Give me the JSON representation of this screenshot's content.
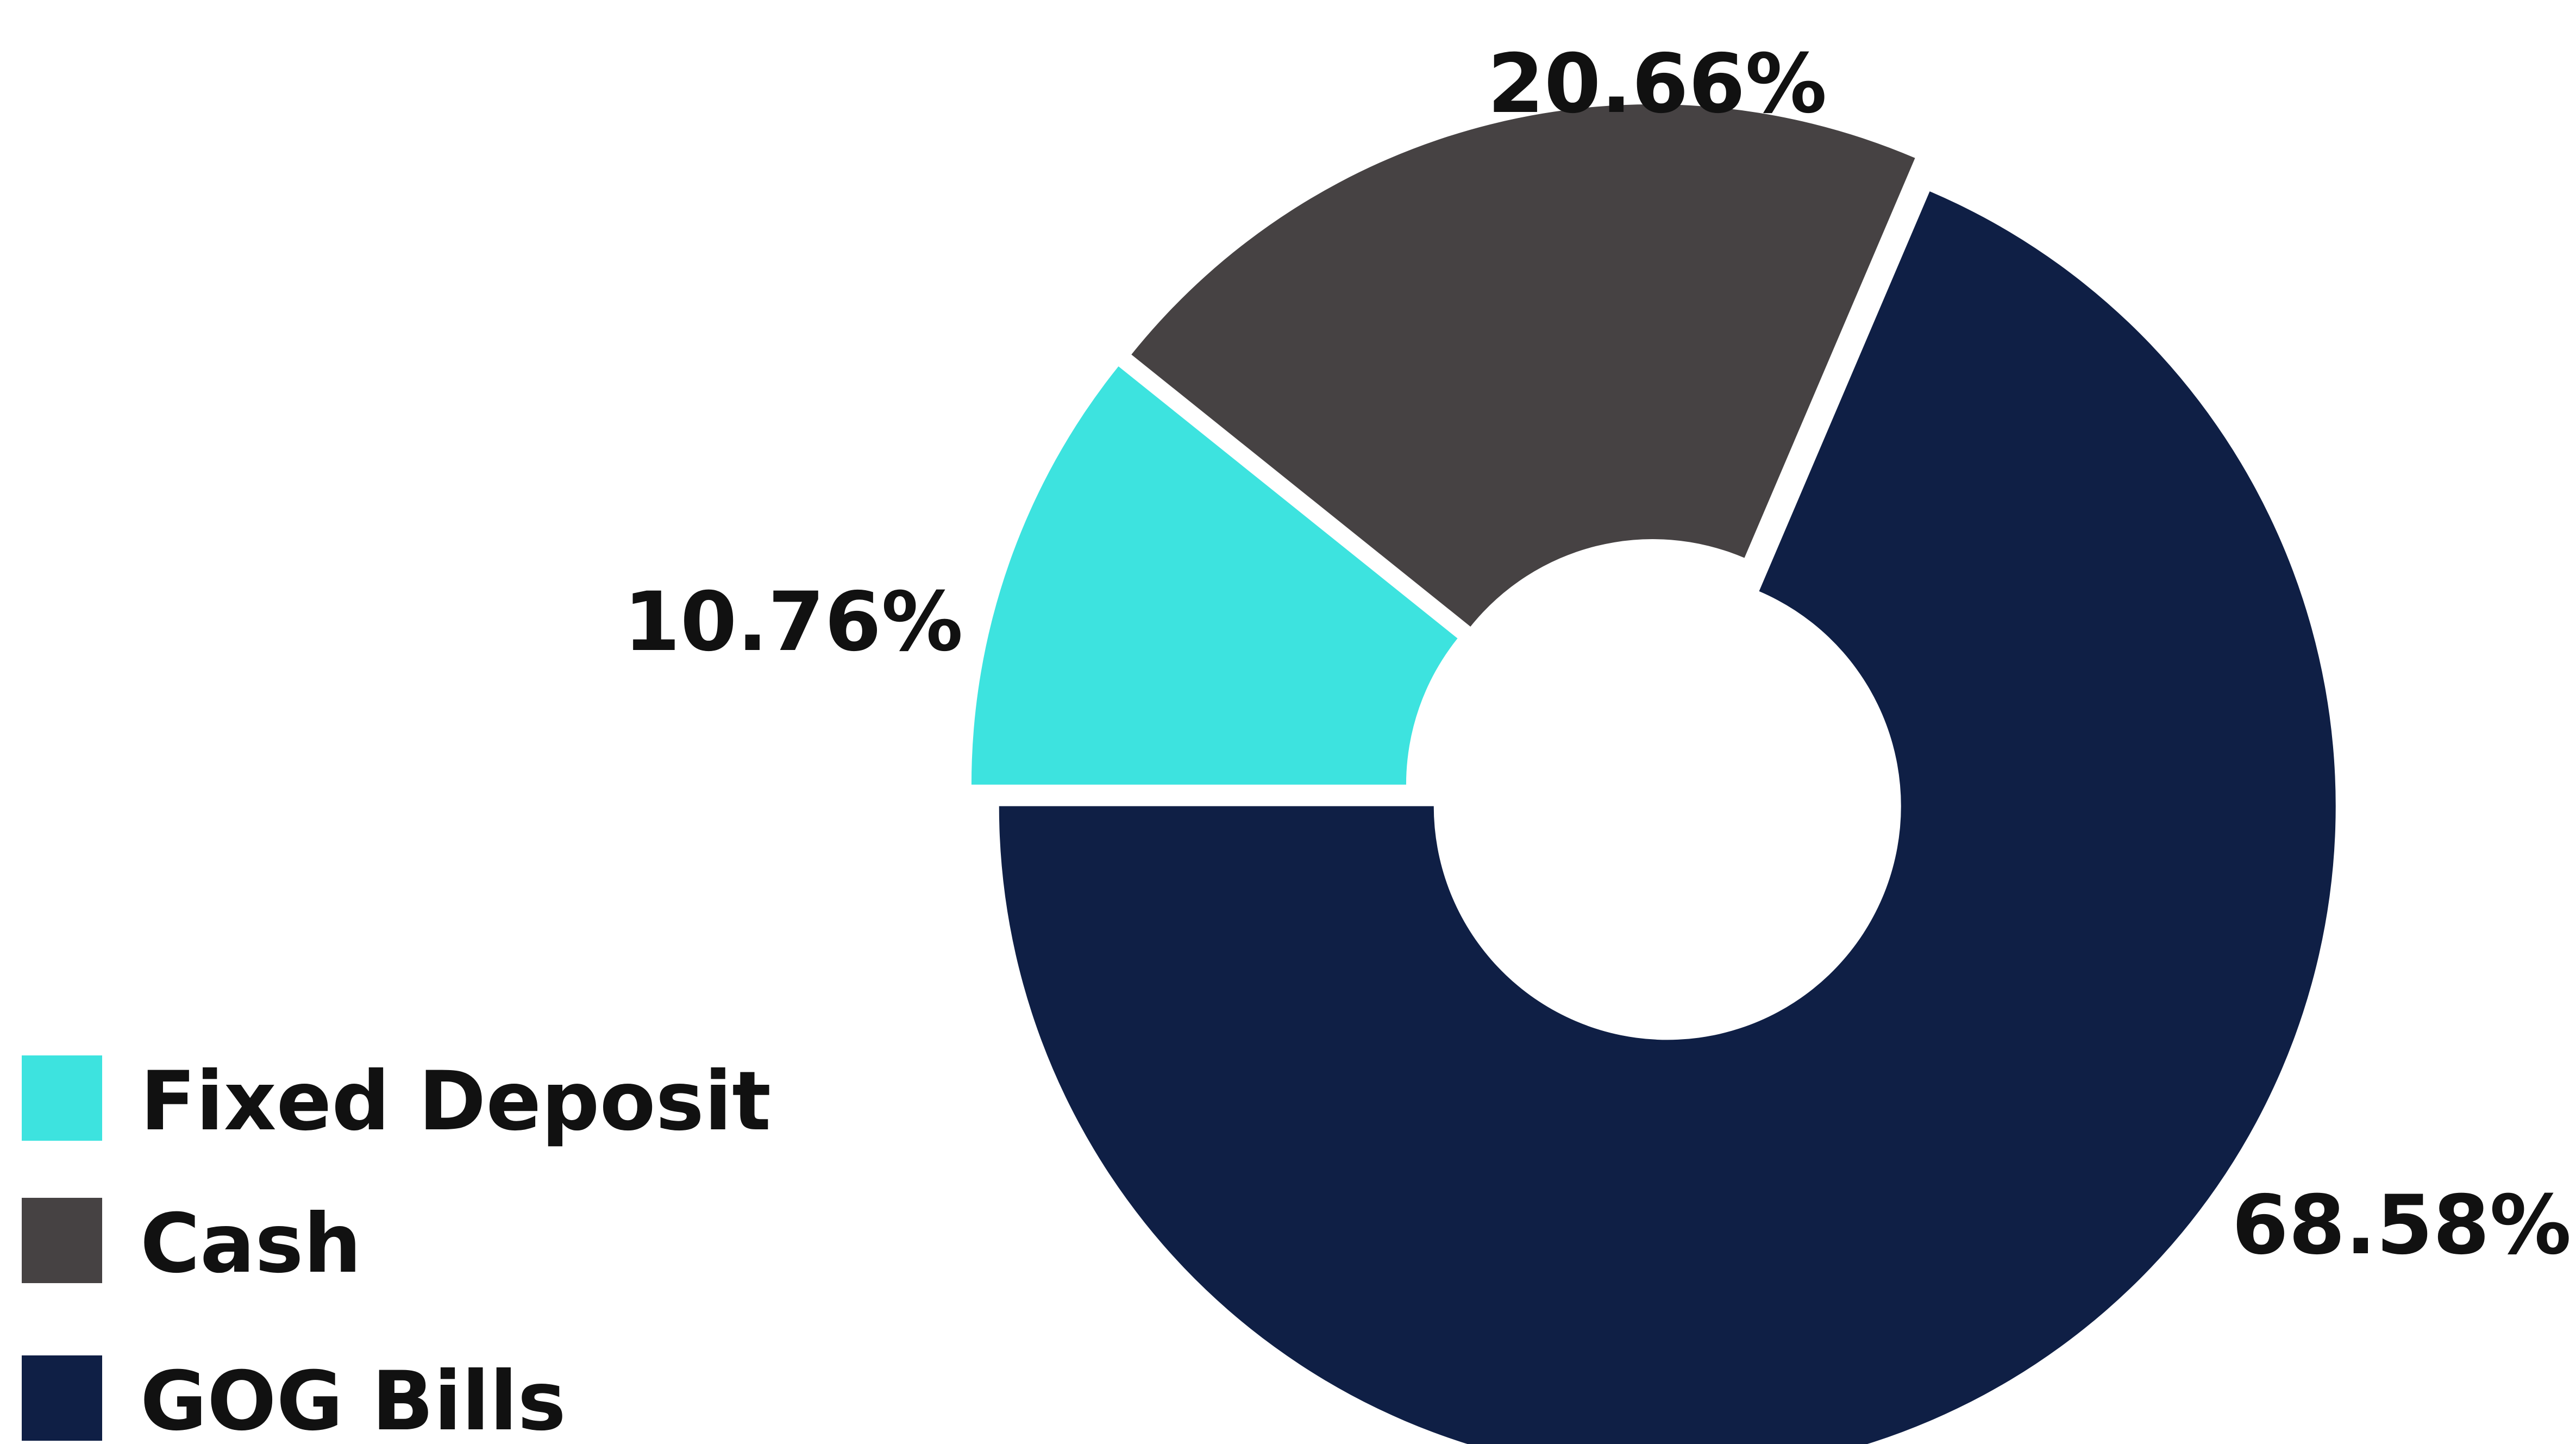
{
  "chart_data": {
    "type": "pie",
    "donut": true,
    "categories": [
      "Fixed Deposit",
      "Cash",
      "GOG Bills"
    ],
    "values": [
      10.76,
      20.66,
      68.58
    ],
    "labels": [
      "10.76%",
      "20.66%",
      "68.58%"
    ],
    "colors": [
      "#3de3df",
      "#464243",
      "#0f1f45"
    ],
    "legend": {
      "position": "bottom-left",
      "items": [
        {
          "label": "Fixed Deposit",
          "color": "#3de3df"
        },
        {
          "label": "Cash",
          "color": "#464243"
        },
        {
          "label": "GOG Bills",
          "color": "#0f1f45"
        }
      ]
    }
  }
}
